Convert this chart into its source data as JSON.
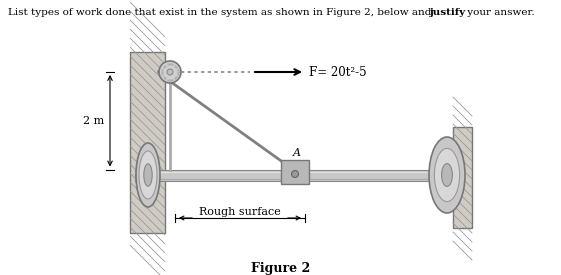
{
  "title_text": "List types of work done that exist in the system as shown in Figure 2, below and ",
  "title_bold": "justify",
  "title_end": " your answer.",
  "figure_label": "Figure 2",
  "force_label": "F= 20t²-5",
  "dim_label": "2 m",
  "rough_label": "Rough surface",
  "point_label": "A",
  "bg_color": "#ffffff",
  "text_color": "#000000",
  "wall_face_color": "#d8d4cc",
  "wall_edge_color": "#888888",
  "rod_color": "#c8c8c8",
  "disc_color": "#c0bfbe",
  "pulley_color": "#d0d0d0",
  "block_color": "#b8b8b8",
  "rope_color": "#888888",
  "cable_color": "#909090"
}
